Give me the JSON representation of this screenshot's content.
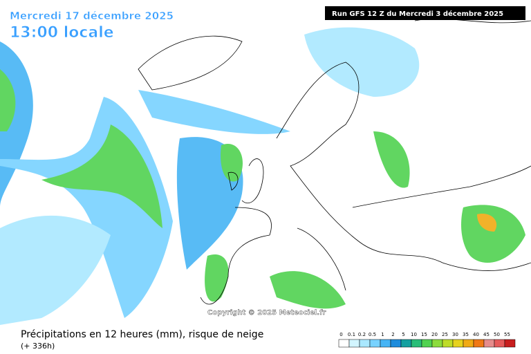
{
  "header": {
    "date": "Mercredi 17 décembre 2025",
    "time": "13:00 locale",
    "run": "Run GFS 12 Z du Mercredi 3 décembre 2025"
  },
  "copyright": "Copyright © 2025 Meteociel.fr",
  "footer": {
    "title": "Précipitations en 12 heures (mm), risque de neige",
    "lead": "(+ 336h)"
  },
  "legend": {
    "labels": [
      "0",
      "0.1",
      "0.2",
      "0.5",
      "1",
      "2",
      "5",
      "10",
      "15",
      "20",
      "25",
      "30",
      "35",
      "40",
      "45",
      "50",
      "55"
    ],
    "colors": [
      "#ffffff",
      "#d2f5ff",
      "#aae8ff",
      "#78d2ff",
      "#46b4f5",
      "#1e8cdc",
      "#14a0a0",
      "#28be78",
      "#50d250",
      "#8cdc3c",
      "#bedc28",
      "#e6d21e",
      "#f0aa14",
      "#f07814",
      "#e68c8c",
      "#e65a5a",
      "#c81e1e"
    ]
  }
}
